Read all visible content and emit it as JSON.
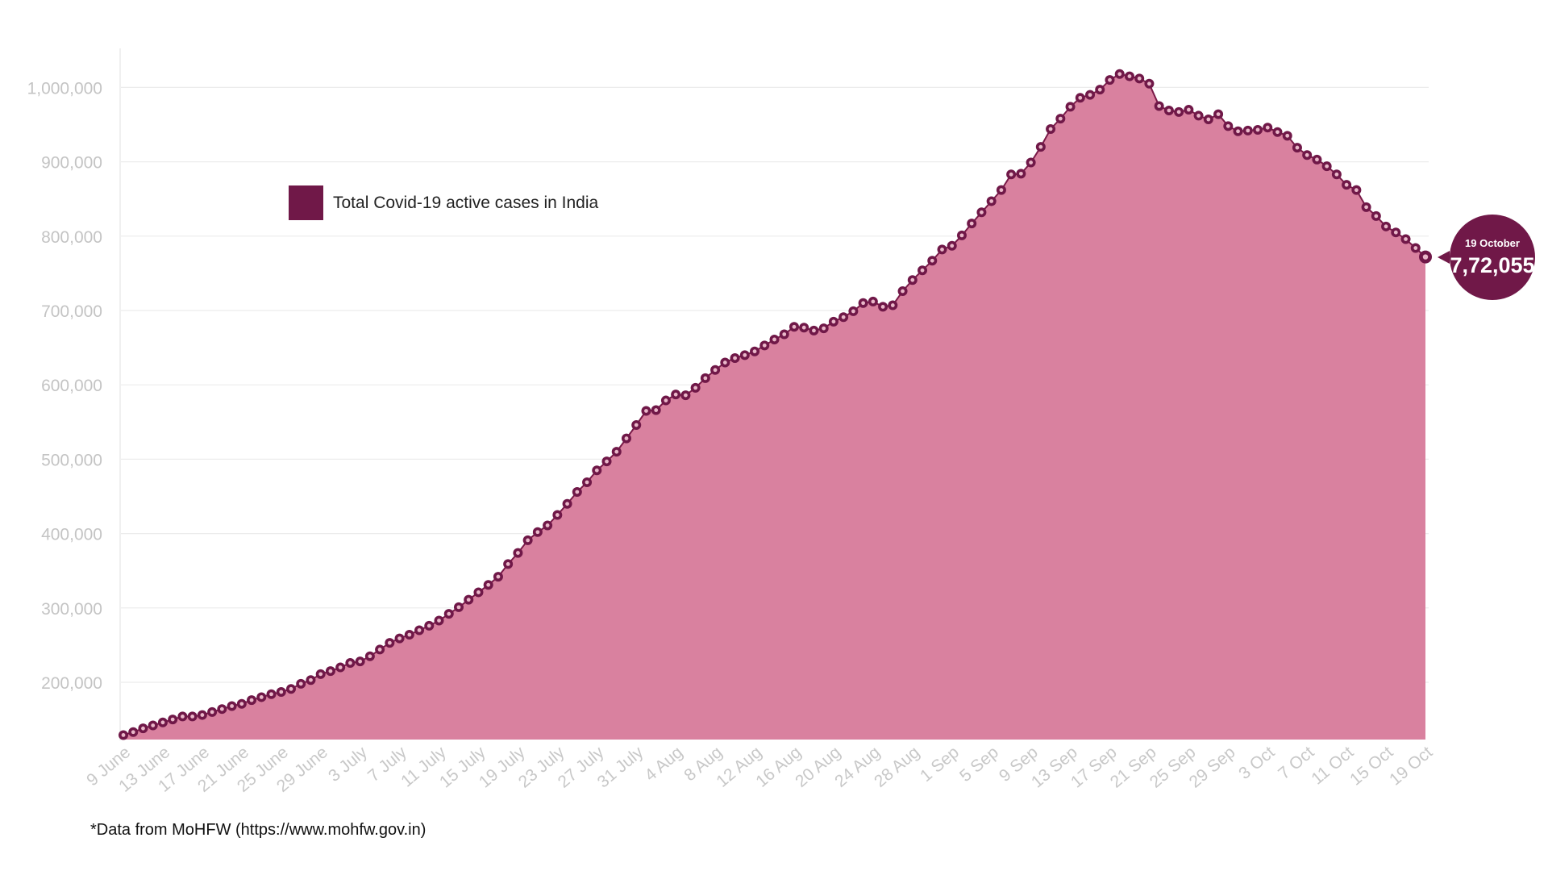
{
  "colors": {
    "area": "#d9819f",
    "line": "#7a1a48",
    "marker": "#701848",
    "legend_swatch": "#701848",
    "grid": "#ececec",
    "tick_text": "#c4c4c4"
  },
  "legend": {
    "label": "Total Covid-19 active cases in India",
    "placement": "top-left"
  },
  "callout": {
    "date": "19 October",
    "value": "7,72,055"
  },
  "footnote": "*Data from MoHFW (https://www.mohfw.gov.in)",
  "chart_data": {
    "type": "area",
    "title": "",
    "xlabel": "",
    "ylabel": "",
    "ylim": [
      118000,
      1080000
    ],
    "yticks": [
      200000,
      300000,
      400000,
      500000,
      600000,
      700000,
      800000,
      900000,
      1000000
    ],
    "ytick_labels": [
      "200,000",
      "300,000",
      "400,000",
      "500,000",
      "600,000",
      "700,000",
      "800,000",
      "900,000",
      "1,000,000"
    ],
    "xtick_labels": [
      "9 June",
      "13 June",
      "17 June",
      "21 June",
      "25 June",
      "29 June",
      "3 July",
      "7 July",
      "11 July",
      "15 July",
      "19 July",
      "23 July",
      "27 July",
      "31 July",
      "4 Aug",
      "8 Aug",
      "12 Aug",
      "16 Aug",
      "20 Aug",
      "24 Aug",
      "28 Aug",
      "1 Sep",
      "5 Sep",
      "9 Sep",
      "13 Sep",
      "17 Sep",
      "21 Sep",
      "25 Sep",
      "29 Sep",
      "3 Oct",
      "7 Oct",
      "11 Oct",
      "15 Oct",
      "19 Oct"
    ],
    "xtick_every": 4,
    "grid": true,
    "series": [
      {
        "name": "Total Covid-19 active cases in India",
        "start": "9 June",
        "end": "19 Oct",
        "values": [
          129000,
          133000,
          138000,
          142000,
          146000,
          150000,
          154000,
          154000,
          156000,
          160000,
          164000,
          168000,
          171000,
          176000,
          180000,
          184000,
          187000,
          191000,
          198000,
          203000,
          211000,
          215000,
          220000,
          226000,
          228000,
          235000,
          244000,
          253000,
          259000,
          264000,
          270000,
          276000,
          283000,
          292000,
          301000,
          311000,
          321000,
          331000,
          342000,
          359000,
          374000,
          391000,
          402000,
          411000,
          425000,
          440000,
          456000,
          469000,
          485000,
          497000,
          510000,
          528000,
          546000,
          565000,
          566000,
          579000,
          587000,
          586000,
          596000,
          609000,
          620000,
          630000,
          636000,
          640000,
          645000,
          653000,
          661000,
          668000,
          678000,
          677000,
          673000,
          676000,
          685000,
          691000,
          699000,
          710000,
          712000,
          705000,
          707000,
          726000,
          741000,
          754000,
          767000,
          782000,
          787000,
          801000,
          817000,
          832000,
          847000,
          862000,
          883000,
          884000,
          899000,
          920000,
          944000,
          958000,
          974000,
          986000,
          990000,
          997000,
          1010000,
          1018000,
          1015000,
          1012000,
          1005000,
          975000,
          969000,
          967000,
          970000,
          962000,
          957000,
          964000,
          948000,
          941000,
          942000,
          943000,
          946000,
          940000,
          935000,
          919000,
          909000,
          903000,
          894000,
          883000,
          869000,
          862000,
          839000,
          827000,
          813000,
          805000,
          796000,
          784000,
          772055
        ]
      }
    ]
  }
}
